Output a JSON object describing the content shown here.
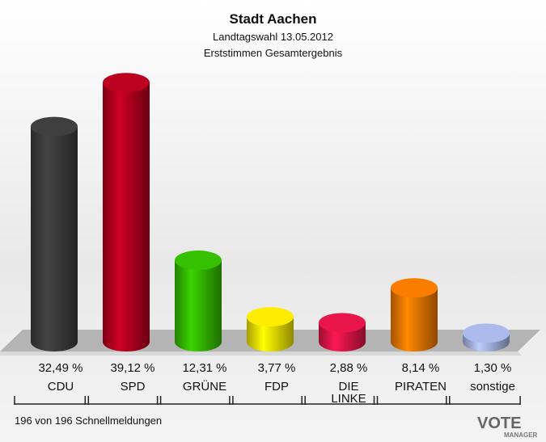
{
  "chart_data": {
    "type": "bar",
    "title": "Stadt Aachen",
    "subtitle": "Landtagswahl 13.05.2012",
    "subtitle2": "Erststimmen Gesamtergebnis",
    "categories": [
      "CDU",
      "SPD",
      "GRÜNE",
      "FDP",
      "DIE\nLINKE",
      "PIRATEN",
      "sonstige"
    ],
    "values": [
      32.49,
      39.12,
      12.31,
      3.77,
      2.88,
      8.14,
      1.3
    ],
    "value_labels": [
      "32,49 %",
      "39,12 %",
      "12,31 %",
      "3,77 %",
      "2,88 %",
      "8,14 %",
      "1,30 %"
    ],
    "colors": [
      "#3c3c3c",
      "#b3001e",
      "#33b800",
      "#f2e200",
      "#de1548",
      "#ee7700",
      "#a4b2e0"
    ],
    "footnote": "196 von 196 Schnellmeldungen",
    "logo": [
      "VOTE",
      "MANAGER"
    ]
  }
}
